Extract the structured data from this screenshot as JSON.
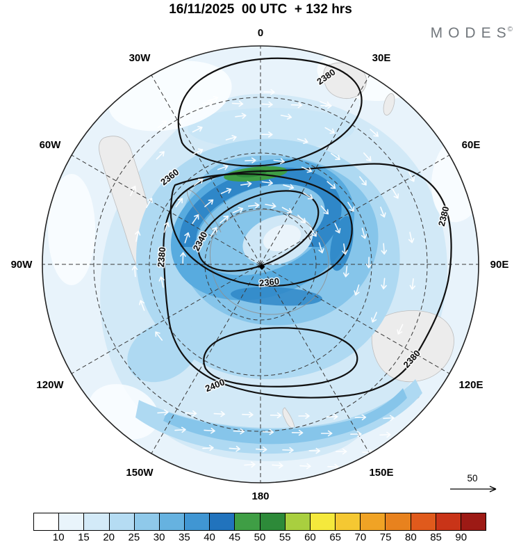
{
  "header": {
    "title": "16/11/2025  00 UTC  + 132 hrs",
    "logo": {
      "text": "MODES",
      "mark": "©"
    }
  },
  "vector_key": {
    "label": "50"
  },
  "chart_data": {
    "type": "heatmap",
    "subtype": "south_polar_stereographic_contour_map",
    "title": "16/11/2025 00 UTC + 132 hrs",
    "longitude_labels": [
      "0",
      "30E",
      "60E",
      "90E",
      "120E",
      "150E",
      "180",
      "150W",
      "120W",
      "90W",
      "60W",
      "30W"
    ],
    "graticule": {
      "meridian_step_deg": 30,
      "style": "dashed",
      "latitude_circles": 3
    },
    "contour_levels": [
      2340,
      2360,
      2380,
      2400
    ],
    "contour_labels": [
      {
        "text": "2380",
        "placement": "north-loop"
      },
      {
        "text": "2360",
        "placement": "upper-left"
      },
      {
        "text": "2340",
        "placement": "center-west"
      },
      {
        "text": "2360",
        "placement": "south-of-center"
      },
      {
        "text": "2380",
        "placement": "west"
      },
      {
        "text": "2380",
        "placement": "east"
      },
      {
        "text": "2380",
        "placement": "southeast"
      },
      {
        "text": "2400",
        "placement": "south"
      }
    ],
    "colorbar": {
      "position": "bottom",
      "tick_labels": [
        "10",
        "15",
        "20",
        "25",
        "30",
        "35",
        "40",
        "45",
        "50",
        "55",
        "60",
        "65",
        "70",
        "75",
        "80",
        "85",
        "90"
      ],
      "cell_colors": [
        "#ffffff",
        "#e9f4fb",
        "#d3eaf8",
        "#b5dcf3",
        "#8fc9ea",
        "#66b2e0",
        "#4096d3",
        "#2173bd",
        "#3f9e45",
        "#2d8a39",
        "#a9cf3f",
        "#f5e93c",
        "#f5c832",
        "#f0a325",
        "#e8821e",
        "#e05a1c",
        "#c93418",
        "#9d1a15"
      ]
    },
    "vector_reference_value": "50",
    "shading_accent_colors": {
      "light_blue": "#d2e9f7",
      "medium_blue": "#86c5ea",
      "strong_blue": "#58abdf",
      "dark_blue": "#2f87c8",
      "jet_green": "#3f9e45"
    }
  }
}
